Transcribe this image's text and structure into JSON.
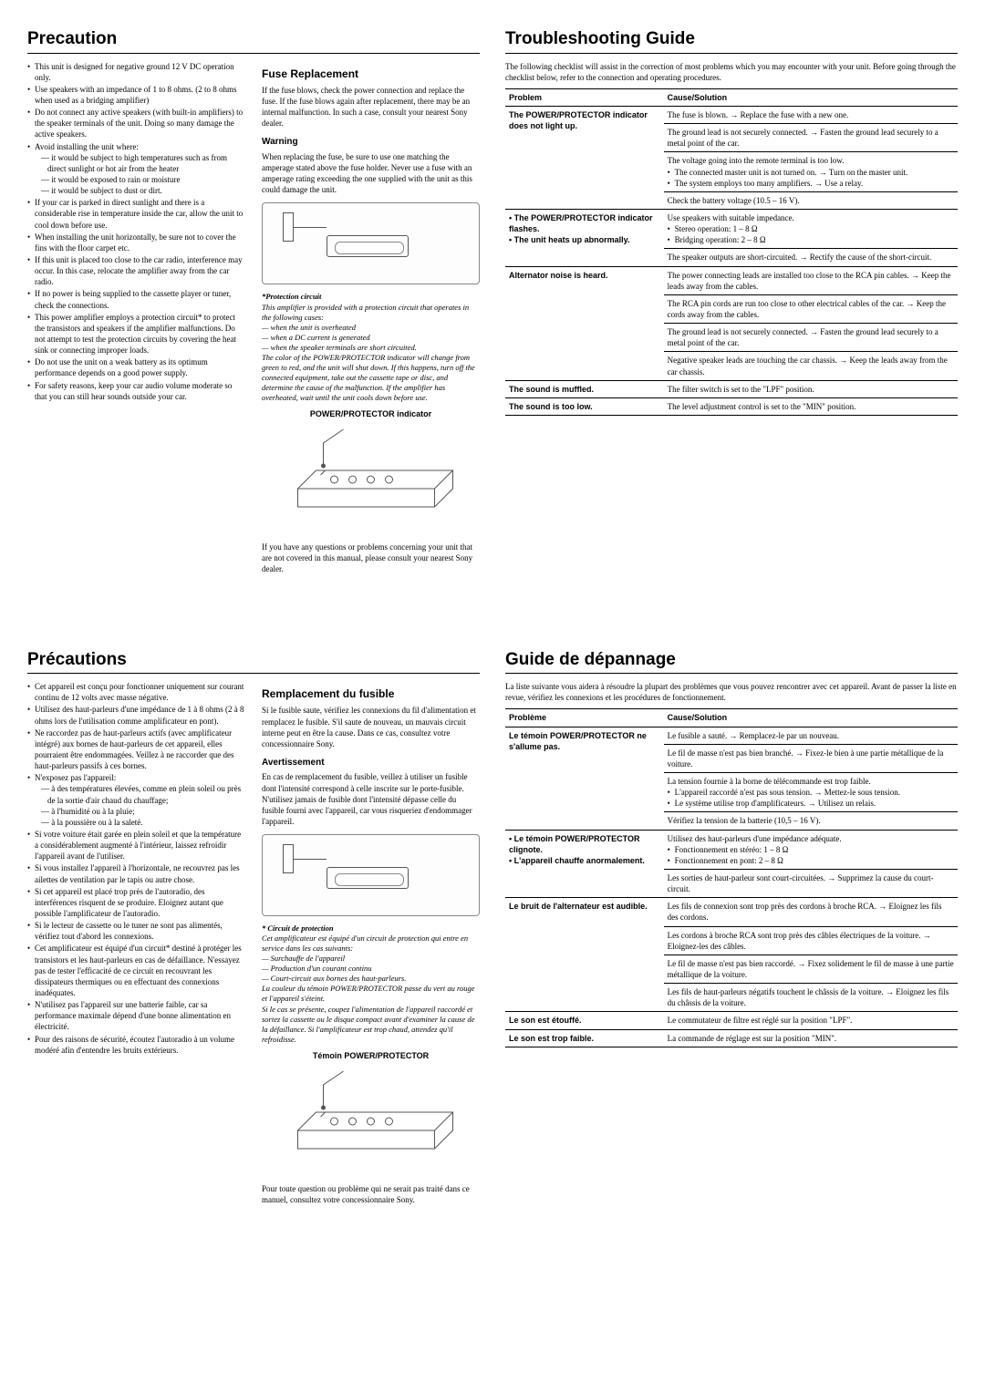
{
  "en": {
    "precaution_title": "Precaution",
    "precaution_items": [
      "This unit is designed for negative ground 12 V DC operation only.",
      "Use speakers with an impedance of 1 to 8 ohms. (2 to 8 ohms when used as a bridging amplifier)",
      "Do not connect any active speakers (with built-in amplifiers) to the speaker terminals of the unit. Doing so many damage the active speakers.",
      "Avoid installing the unit where:",
      "If your car is parked in direct sunlight and there is a considerable rise in temperature inside the car, allow the unit to cool down before use.",
      "When installing the unit horizontally, be sure not to cover the fins with the floor carpet etc.",
      "If this unit is placed too close to the car radio, interference may occur. In this case, relocate the amplifier away from the car radio.",
      "If no power is being supplied to the cassette player or tuner, check the connections.",
      "This power amplifier employs a protection circuit* to protect the transistors and speakers if the amplifier malfunctions. Do not attempt to test the protection circuits by covering the heat sink or connecting improper loads.",
      "Do not use the unit on a weak battery as its optimum performance depends on a good power supply.",
      "For safety reasons, keep  your car audio volume moderate so that you can still hear sounds outside your car."
    ],
    "precaution_sub": [
      "— it would be subject to high temperatures such as from direct sunlight or hot air from the heater",
      "— it would be exposed to rain or moisture",
      "— it would be subject to dust or dirt."
    ],
    "fuse_title": "Fuse Replacement",
    "fuse_body": "If the fuse blows, check the power connection and replace the fuse. If the fuse blows again after replacement, there may be an internal malfunction. In such a case, consult your nearest Sony dealer.",
    "warning_title": "Warning",
    "warning_body": "When replacing the fuse, be sure to use one matching the amperage stated above the fuse holder. Never use a fuse with an amperage rating exceeding the one supplied with the unit as this could damage the unit.",
    "prot_head": "*Protection circuit",
    "prot_intro": "This amplifier is provided with a protection circuit that operates in the following cases:",
    "prot_case1": "— when the unit is overheated",
    "prot_case2": "— when a DC current is generated",
    "prot_case3": "— when the speaker terminals are short circuited.",
    "prot_tail": "The color of the POWER/PROTECTOR indicator will change from green to red, and the unit will shut down. If this happens, turn off the connected equipment, take out the cassette tape or disc, and determine the cause of the malfunction. If the amplifier has overheated, wait until the unit cools down before use.",
    "indicator_caption": "POWER/PROTECTOR indicator",
    "closing": "If you have any questions or problems concerning your unit that are not covered in this manual, please consult your nearest Sony dealer.",
    "trouble_title": "Troubleshooting Guide",
    "trouble_intro": "The following checklist will assist in the correction of most problems which you may encounter with your unit. Before going through the checklist below, refer to the connection and operating procedures.",
    "th_problem": "Problem",
    "th_cause": "Cause/Solution",
    "rows": [
      {
        "problem": "The POWER/PROTECTOR indicator does not light up.",
        "span": 4,
        "thick": true,
        "sol": "The fuse is blown. → Replace the fuse with a new one."
      },
      {
        "sol": "The ground lead is not securely connected. → Fasten the ground lead securely to a metal point of the car."
      },
      {
        "sol": "The voltage going into the remote terminal is too low.",
        "list": [
          "The connected master unit is not turned on. → Turn on the master unit.",
          "The system employs too many amplifiers. → Use a relay."
        ]
      },
      {
        "sol": "Check the battery voltage (10.5 – 16 V)."
      },
      {
        "problem": "• The POWER/PROTECTOR indicator flashes.\n• The unit heats up abnormally.",
        "span": 2,
        "thick": true,
        "sol": "Use speakers with suitable impedance.",
        "list": [
          "Stereo operation: 1 – 8 Ω",
          "Bridging operation: 2 – 8 Ω"
        ]
      },
      {
        "sol": "The speaker outputs are short-circuited. → Rectify the cause of the short-circuit."
      },
      {
        "problem": "Alternator noise is heard.",
        "span": 4,
        "thick": true,
        "sol": "The power connecting leads are installed too close to the RCA pin cables. → Keep the leads away from the cables."
      },
      {
        "sol": "The RCA pin cords are run too close to other electrical cables of the car. → Keep the cords away from the cables."
      },
      {
        "sol": "The ground lead is not securely connected. → Fasten the ground lead securely to a metal point of the car."
      },
      {
        "sol": "Negative speaker leads are touching the car chassis. → Keep the leads away from the car chassis."
      },
      {
        "problem": "The sound is muffled.",
        "span": 1,
        "thick": true,
        "sol": "The filter switch is set to the \"LPF\" position."
      },
      {
        "problem": "The sound is too low.",
        "span": 1,
        "thick": true,
        "sol": "The level adjustment control is set to the \"MIN\" position."
      }
    ]
  },
  "fr": {
    "precaution_title": "Précautions",
    "precaution_items": [
      "Cet appareil est conçu pour fonctionner uniquement sur courant continu de 12 volts avec masse négative.",
      "Utilisez des haut-parleurs d'une impédance de 1 à 8 ohms (2 à 8 ohms lors de l'utilisation comme amplificateur en pont).",
      "Ne raccordez pas de haut-parleurs actifs (avec amplificateur intégré) aux bornes de haut-parleurs de cet appareil, elles pourraient être endommagées. Veillez à ne raccorder que des haut-parleurs passifs à ces bornes.",
      "N'exposez pas l'appareil:",
      "Si votre voiture était garée en plein soleil et que la température a considérablement augmenté à l'intérieur, laissez refroidir l'appareil avant de l'utiliser.",
      "Si vous installez l'appareil à l'horizontale, ne recouvrez pas les ailettes de ventilation par le tapis ou autre chose.",
      "Si cet appareil est placé trop près de l'autoradio, des interférences risquent de se produire. Eloignez autant que possible l'amplificateur de l'autoradio.",
      "Si le lecteur de cassette ou le tuner ne sont pas alimentés, vérifiez tout d'abord les connexions.",
      "Cet amplificateur est équipé d'un circuit* destiné à protéger les transistors et les haut-parleurs en cas de défaillance. N'essayez pas de tester l'efficacité de ce circuit en recouvrant les dissipateurs thermiques ou en effectuant des connexions inadéquates.",
      "N'utilisez pas l'appareil sur une batterie faible, car sa performance maximale dépend d'une bonne alimentation en électricité.",
      "Pour des raisons de sécurité, écoutez l'autoradio à un volume modéré afin d'entendre les bruits extérieurs."
    ],
    "precaution_sub": [
      "— à des températures élevées, comme en plein soleil ou près de la sortie d'air chaud du chauffage;",
      "— à l'humidité ou à la pluie;",
      "— à la poussière ou à la saleté."
    ],
    "fuse_title": "Remplacement du fusible",
    "fuse_body": "Si le fusible saute, vérifiez les connexions du fil d'alimentation et remplacez le fusible. S'il saute de nouveau, un mauvais circuit interne peut en être la cause. Dans ce cas, consultez votre concessionnaire Sony.",
    "warning_title": "Avertissement",
    "warning_body": "En cas de remplacement du fusible, veillez à utiliser un fusible dont l'intensité correspond à celle inscrite sur le porte-fusible. N'utilisez jamais de fusible dont l'intensité dépasse celle du fusible fourni avec l'appareil, car vous risqueriez d'endommager l'appareil.",
    "prot_head": "* Circuit de protection",
    "prot_intro": "Cet amplificateur est équipé d'un circuit de protection qui entre en service dans les cas suivants:",
    "prot_case1": "— Surchauffe de l'appareil",
    "prot_case2": "— Production d'un courant continu",
    "prot_case3": "— Court-circuit aux bornes des haut-parleurs.",
    "prot_tail": "La couleur du témoin POWER/PROTECTOR passe du vert au rouge et l'appareil s'éteint.\nSi le cas se présente, coupez l'alimentation de l'appareil raccordé et sortez la cassette ou le disque compact avant d'examiner la cause de la défaillance. Si l'amplificateur est trop chaud, attendez qu'il refroidisse.",
    "indicator_caption": "Témoin POWER/PROTECTOR",
    "closing": "Pour toute question ou problème qui ne serait pas traité dans ce manuel, consultez votre concessionnaire Sony.",
    "trouble_title": "Guide de dépannage",
    "trouble_intro": "La liste suivante vous aidera à résoudre la plupart des problèmes que vous pouvez rencontrer avec cet appareil.  Avant de passer la liste en revue, vérifiez les connexions et les procédures de fonctionnement.",
    "th_problem": "Problème",
    "th_cause": "Cause/Solution",
    "rows": [
      {
        "problem": "Le témoin POWER/PROTECTOR ne s'allume pas.",
        "span": 4,
        "thick": true,
        "sol": "Le fusible a sauté. → Remplacez-le par un nouveau."
      },
      {
        "sol": "Le fil de masse n'est pas bien branché. → Fixez-le bien à une partie métallique de la voiture."
      },
      {
        "sol": "La tension fournie à la borne de télécommande est trop faible.",
        "list": [
          "L'appareil raccordé n'est pas sous tension. → Mettez-le sous tension.",
          "Le système utilise trop d'amplificateurs. → Utilisez un relais."
        ]
      },
      {
        "sol": "Vérifiez la tension de la batterie (10,5 – 16 V)."
      },
      {
        "problem": "• Le témoin POWER/PROTECTOR clignote.\n• L'appareil chauffe anormalement.",
        "span": 2,
        "thick": true,
        "sol": "Utilisez des haut-parleurs d'une impédance adéquate.",
        "list": [
          "Fonctionnement en stéréo: 1 – 8 Ω",
          "Fonctionnement en pont: 2 – 8 Ω"
        ]
      },
      {
        "sol": "Les sorties de haut-parleur sont court-circuitées. → Supprimez la cause du court-circuit."
      },
      {
        "problem": "Le bruit de l'alternateur est audible.",
        "span": 4,
        "thick": true,
        "sol": "Les fils de connexion sont trop près des cordons à broche RCA. → Eloignez les fils des cordons."
      },
      {
        "sol": "Les cordons à broche RCA sont trop près des câbles électriques de la voiture. → Eloignez-les des câbles."
      },
      {
        "sol": "Le fil de masse n'est pas bien raccordé. → Fixez solidement le fil de masse à une partie métallique de la voiture."
      },
      {
        "sol": "Les fils de haut-parleurs négatifs touchent le châssis de la voiture. → Eloignez les fils du châssis de la voiture."
      },
      {
        "problem": "Le son est étouffé.",
        "span": 1,
        "thick": true,
        "sol": "Le commutateur de filtre est réglé sur la position \"LPF\"."
      },
      {
        "problem": "Le son est trop faible.",
        "span": 1,
        "thick": true,
        "sol": "La commande de réglage est sur la position \"MIN\"."
      }
    ]
  }
}
